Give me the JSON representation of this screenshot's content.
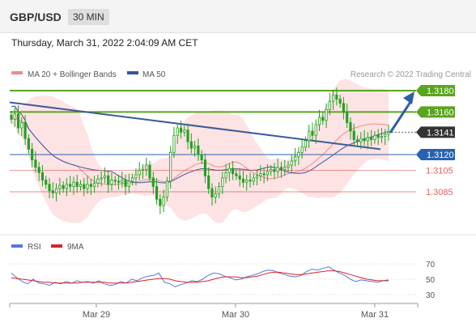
{
  "header": {
    "pair": "GBP/USD",
    "timeframe": "30 MIN",
    "datetime": "Thursday, March 31, 2022 2:04:09 AM CET"
  },
  "legend": {
    "ma20": "MA 20 + Bollinger Bands",
    "ma50": "MA 50",
    "credit": "Research © 2022 Trading Central",
    "rsi": "RSI",
    "rsi_ma": "9MA"
  },
  "colors": {
    "candle": "#22a022",
    "bollinger_fill": "#fde3e3",
    "ma20": "#ee8a8a",
    "ma50": "#3455a0",
    "trendline": "#3c5a9a",
    "resistance": "#5aa51e",
    "support": "#2a62b0",
    "sub_support": "#e06060",
    "current": "#333333",
    "rsi": "#5577dd",
    "rsi_ma": "#dd2222",
    "arrow": "#2e5fa8"
  },
  "chart_data": [
    {
      "type": "candlestick",
      "title": "",
      "ylim": [
        1.3061,
        1.3191
      ],
      "x_tick_labels": [
        "Mar 29",
        "Mar 30",
        "Mar 31"
      ],
      "close_series": [
        1.3153,
        1.3158,
        1.3145,
        1.315,
        1.3135,
        1.3125,
        1.3115,
        1.3108,
        1.3103,
        1.3096,
        1.3092,
        1.3086,
        1.3084,
        1.3088,
        1.3091,
        1.3088,
        1.3092,
        1.309,
        1.3094,
        1.309,
        1.3092,
        1.3088,
        1.3092,
        1.309,
        1.3093,
        1.3097,
        1.3098,
        1.31,
        1.3092,
        1.3096,
        1.3095,
        1.3094,
        1.3096,
        1.309,
        1.3095,
        1.3098,
        1.3101,
        1.3105,
        1.3106,
        1.311,
        1.3098,
        1.309,
        1.3078,
        1.3072,
        1.308,
        1.3095,
        1.3122,
        1.3138,
        1.3145,
        1.3141,
        1.3143,
        1.3132,
        1.3126,
        1.3128,
        1.312,
        1.3115,
        1.31,
        1.3088,
        1.308,
        1.3083,
        1.309,
        1.3098,
        1.3103,
        1.3107,
        1.3102,
        1.31,
        1.3097,
        1.3094,
        1.3096,
        1.3095,
        1.3098,
        1.31,
        1.3102,
        1.3101,
        1.3104,
        1.3106,
        1.3104,
        1.3108,
        1.3106,
        1.3108,
        1.311,
        1.3114,
        1.3118,
        1.3122,
        1.3127,
        1.3133,
        1.3142,
        1.3138,
        1.3148,
        1.3155,
        1.3152,
        1.3162,
        1.317,
        1.3176,
        1.3172,
        1.3168,
        1.316,
        1.315,
        1.3142,
        1.3134,
        1.3132,
        1.3135,
        1.3133,
        1.3136,
        1.3134,
        1.3138,
        1.3136,
        1.3137,
        1.3139,
        1.3141
      ],
      "levels": {
        "resistance": [
          "1.3180",
          "1.3160"
        ],
        "current": "1.3141",
        "support": "1.3120",
        "sub_supports": [
          "1.3105",
          "1.3085"
        ]
      },
      "indicators": [
        "MA 20 + Bollinger Bands",
        "MA 50"
      ],
      "trendline": "descending, from Mar 28 high to Mar 31",
      "projection": "upward arrow toward 1.3180",
      "grid": false
    },
    {
      "type": "line",
      "title": "RSI",
      "ylim": [
        20,
        80
      ],
      "y_ticks": [
        70,
        50,
        30
      ],
      "series": [
        {
          "name": "RSI",
          "values": [
            58,
            52,
            47,
            44,
            50,
            45,
            44,
            42,
            46,
            44,
            47,
            45,
            48,
            46,
            47,
            45,
            48,
            44,
            42,
            43,
            47,
            45,
            50,
            48,
            52,
            54,
            55,
            58,
            46,
            44,
            40,
            43,
            45,
            48,
            47,
            50,
            55,
            58,
            57,
            54,
            52,
            49,
            50,
            53,
            55,
            57,
            60,
            62,
            61,
            58,
            56,
            54,
            53,
            55,
            60,
            63,
            62,
            64,
            66,
            62,
            58,
            55,
            50,
            47,
            49,
            48,
            47,
            46,
            48,
            49
          ]
        },
        {
          "name": "9MA",
          "values": [
            52,
            51,
            50,
            49,
            48,
            47,
            46,
            46,
            45,
            45,
            45,
            45,
            45,
            46,
            46,
            46,
            46,
            46,
            45,
            45,
            45,
            45,
            46,
            47,
            48,
            49,
            50,
            51,
            51,
            50,
            48,
            47,
            46,
            46,
            46,
            47,
            48,
            50,
            52,
            53,
            53,
            53,
            52,
            52,
            53,
            54,
            56,
            58,
            59,
            59,
            58,
            57,
            56,
            56,
            57,
            58,
            59,
            60,
            61,
            61,
            60,
            58,
            56,
            54,
            52,
            50,
            49,
            48,
            48,
            48
          ]
        }
      ]
    }
  ]
}
